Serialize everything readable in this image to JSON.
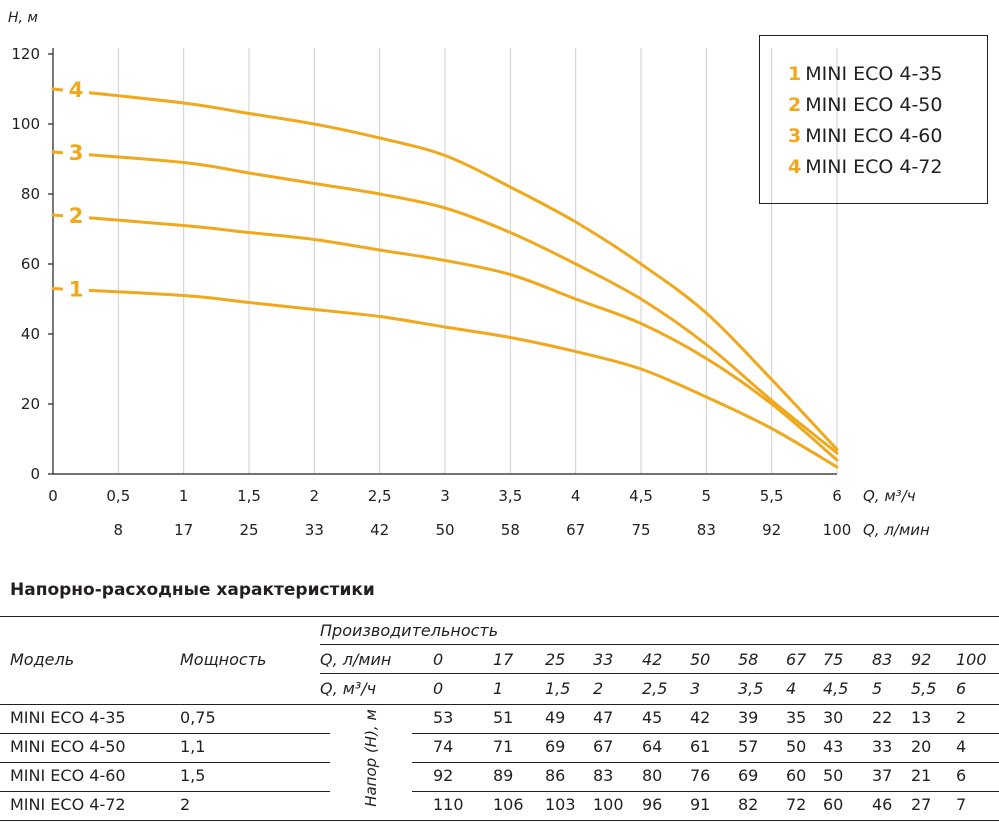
{
  "chart_data": {
    "type": "line",
    "y_axis_label": "H, м",
    "x_axis_label": "Q, м³/ч",
    "x2_axis_label": "Q, л/мин",
    "ylim": [
      0,
      120
    ],
    "xlim": [
      0,
      6
    ],
    "y_ticks": [
      "0",
      "20",
      "40",
      "60",
      "80",
      "100",
      "120"
    ],
    "x_ticks": [
      {
        "v": 0,
        "label": "0"
      },
      {
        "v": 0.5,
        "label": "0,5"
      },
      {
        "v": 1,
        "label": "1"
      },
      {
        "v": 1.5,
        "label": "1,5"
      },
      {
        "v": 2,
        "label": "2"
      },
      {
        "v": 2.5,
        "label": "2,5"
      },
      {
        "v": 3,
        "label": "3"
      },
      {
        "v": 3.5,
        "label": "3,5"
      },
      {
        "v": 4,
        "label": "4"
      },
      {
        "v": 4.5,
        "label": "4,5"
      },
      {
        "v": 5,
        "label": "5"
      },
      {
        "v": 5.5,
        "label": "5,5"
      },
      {
        "v": 6,
        "label": "6"
      }
    ],
    "x2_ticks": [
      {
        "v": 0.5,
        "label": "8"
      },
      {
        "v": 1,
        "label": "17"
      },
      {
        "v": 1.5,
        "label": "25"
      },
      {
        "v": 2,
        "label": "33"
      },
      {
        "v": 2.5,
        "label": "42"
      },
      {
        "v": 3,
        "label": "50"
      },
      {
        "v": 3.5,
        "label": "58"
      },
      {
        "v": 4,
        "label": "67"
      },
      {
        "v": 4.5,
        "label": "75"
      },
      {
        "v": 5,
        "label": "83"
      },
      {
        "v": 5.5,
        "label": "92"
      },
      {
        "v": 6,
        "label": "100"
      }
    ],
    "grid": "vertical",
    "legend_position": "top-right",
    "line_color": "#f0a81c",
    "x": [
      0,
      1,
      1.5,
      2,
      2.5,
      3,
      3.5,
      4,
      4.5,
      5,
      5.5,
      6
    ],
    "series": [
      {
        "id": "1",
        "name": "MINI ECO 4-35",
        "values": [
          53,
          51,
          49,
          47,
          45,
          42,
          39,
          35,
          30,
          22,
          13,
          2
        ]
      },
      {
        "id": "2",
        "name": "MINI ECO 4-50",
        "values": [
          74,
          71,
          69,
          67,
          64,
          61,
          57,
          50,
          43,
          33,
          20,
          4
        ]
      },
      {
        "id": "3",
        "name": "MINI ECO 4-60",
        "values": [
          92,
          89,
          86,
          83,
          80,
          76,
          69,
          60,
          50,
          37,
          21,
          6
        ]
      },
      {
        "id": "4",
        "name": "MINI ECO 4-72",
        "values": [
          110,
          106,
          103,
          100,
          96,
          91,
          82,
          72,
          60,
          46,
          27,
          7
        ]
      }
    ]
  },
  "table": {
    "title": "Напорно-расходные характеристики",
    "col_model": "Модель",
    "col_power": "Мощность",
    "col_perf": "Производительность",
    "row_lmin_label": "Q, л/мин",
    "row_m3h_label": "Q, м³/ч",
    "lmin": [
      "0",
      "17",
      "25",
      "33",
      "42",
      "50",
      "58",
      "67",
      "75",
      "83",
      "92",
      "100"
    ],
    "m3h": [
      "0",
      "1",
      "1,5",
      "2",
      "2,5",
      "3",
      "3,5",
      "4",
      "4,5",
      "5",
      "5,5",
      "6"
    ],
    "head_label": "Напор (H), м",
    "rows": [
      {
        "model": "MINI ECO 4-35",
        "power": "0,75",
        "values": [
          "53",
          "51",
          "49",
          "47",
          "45",
          "42",
          "39",
          "35",
          "30",
          "22",
          "13",
          "2"
        ]
      },
      {
        "model": "MINI ECO 4-50",
        "power": "1,1",
        "values": [
          "74",
          "71",
          "69",
          "67",
          "64",
          "61",
          "57",
          "50",
          "43",
          "33",
          "20",
          "4"
        ]
      },
      {
        "model": "MINI ECO 4-60",
        "power": "1,5",
        "values": [
          "92",
          "89",
          "86",
          "83",
          "80",
          "76",
          "69",
          "60",
          "50",
          "37",
          "21",
          "6"
        ]
      },
      {
        "model": "MINI ECO 4-72",
        "power": "2",
        "values": [
          "110",
          "106",
          "103",
          "100",
          "96",
          "91",
          "82",
          "72",
          "60",
          "46",
          "27",
          "7"
        ]
      }
    ]
  }
}
